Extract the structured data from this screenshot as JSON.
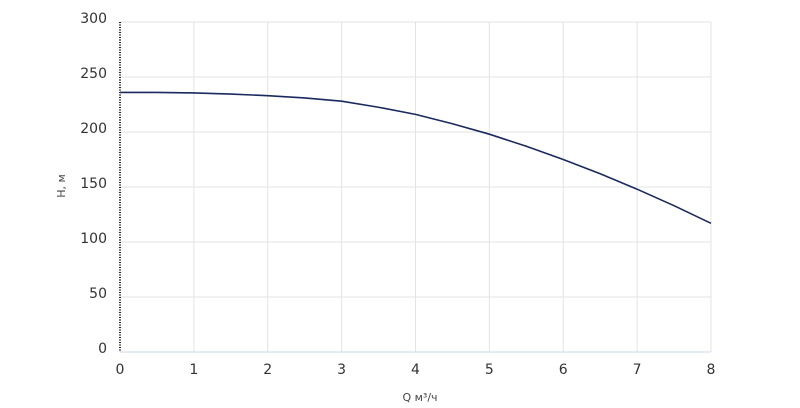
{
  "chart_data": {
    "type": "line",
    "x_label": "Q м³/ч",
    "y_label": "H, м",
    "x": [
      0,
      0.5,
      1,
      1.5,
      2,
      2.5,
      3,
      3.5,
      4,
      4.5,
      5,
      5.5,
      6,
      6.5,
      7,
      7.5,
      8
    ],
    "series": [
      {
        "color": "#1a2a5e",
        "values": [
          236,
          236,
          235.5,
          234.5,
          233,
          231,
          228,
          222.5,
          216,
          207.5,
          198,
          187,
          175,
          162,
          148,
          133,
          117
        ]
      }
    ],
    "xlim": [
      0,
      8
    ],
    "xticks": [
      0,
      1,
      2,
      3,
      4,
      5,
      6,
      7,
      8
    ],
    "ylim": [
      0,
      300
    ],
    "yticks": [
      0,
      50,
      100,
      150,
      200,
      250,
      300
    ],
    "grid": true
  }
}
